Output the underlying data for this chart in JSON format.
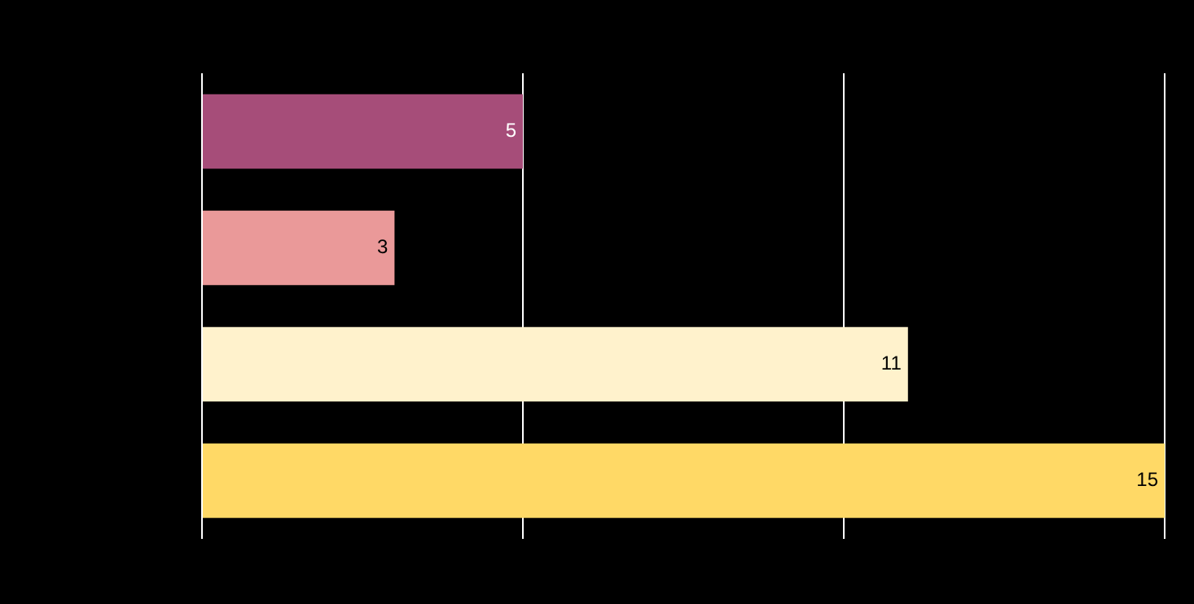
{
  "chart_data": {
    "type": "bar",
    "orientation": "horizontal",
    "categories": [
      null,
      null,
      null,
      null
    ],
    "values": [
      5,
      3,
      11,
      15
    ],
    "colors": [
      "#a64d79",
      "#ea9999",
      "#fff2cc",
      "#ffd966"
    ],
    "xlim": [
      0,
      15
    ],
    "xticks": [
      {
        "value": 0,
        "label": null
      },
      {
        "value": 5,
        "label": null
      },
      {
        "value": 10,
        "label": null
      },
      {
        "value": 15,
        "label": null
      }
    ],
    "tick_labels": false,
    "grid": "x",
    "data_labels": true
  }
}
